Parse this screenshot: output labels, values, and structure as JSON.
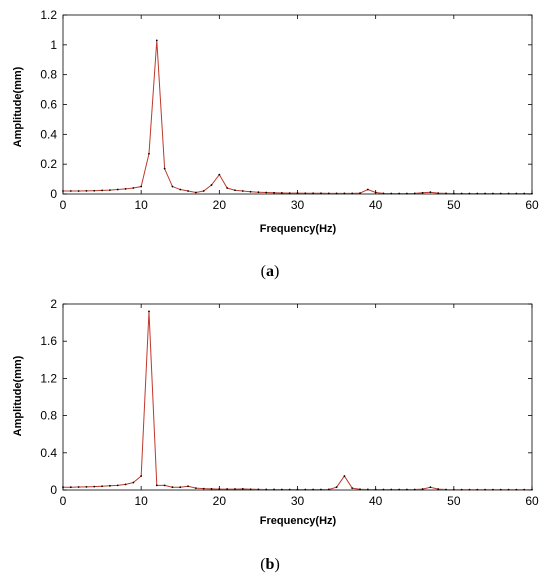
{
  "colors": {
    "line": "#c0392b",
    "marker": "#000000",
    "axis": "#000000"
  },
  "panels": [
    {
      "label_open": "(",
      "label_letter": "a",
      "label_close": ")"
    },
    {
      "label_open": "(",
      "label_letter": "b",
      "label_close": ")"
    }
  ],
  "chart_data": [
    {
      "type": "line",
      "xlabel": "Frequency(Hz)",
      "ylabel": "Amplitude(mm)",
      "xlim": [
        0,
        60
      ],
      "ylim": [
        0,
        1.2
      ],
      "xticks": [
        0,
        10,
        20,
        30,
        40,
        50,
        60
      ],
      "xtick_labels": [
        "0",
        "10",
        "20",
        "30",
        "40",
        "50",
        "60"
      ],
      "yticks": [
        0,
        0.2,
        0.4,
        0.6,
        0.8,
        1.0,
        1.2
      ],
      "ytick_labels": [
        "0",
        "0.2",
        "0.4",
        "0.6",
        "0.8",
        "1",
        "1.2"
      ],
      "series": [
        {
          "x": [
            0,
            1,
            2,
            3,
            4,
            5,
            6,
            7,
            8,
            9,
            10,
            11,
            12,
            13,
            14,
            15,
            16,
            17,
            18,
            19,
            20,
            21,
            22,
            23,
            24,
            25,
            26,
            27,
            28,
            29,
            30,
            31,
            32,
            33,
            34,
            35,
            36,
            37,
            38,
            39,
            40,
            41,
            42,
            43,
            44,
            45,
            46,
            47,
            48,
            49,
            50,
            51,
            52,
            53,
            54,
            55,
            56,
            57,
            58,
            59,
            60
          ],
          "y": [
            0.02,
            0.02,
            0.02,
            0.021,
            0.022,
            0.024,
            0.026,
            0.03,
            0.034,
            0.04,
            0.05,
            0.27,
            1.03,
            0.17,
            0.05,
            0.03,
            0.02,
            0.01,
            0.02,
            0.06,
            0.13,
            0.04,
            0.025,
            0.02,
            0.015,
            0.012,
            0.01,
            0.008,
            0.007,
            0.006,
            0.006,
            0.005,
            0.005,
            0.005,
            0.004,
            0.004,
            0.004,
            0.004,
            0.006,
            0.03,
            0.01,
            0.004,
            0.003,
            0.003,
            0.003,
            0.004,
            0.008,
            0.012,
            0.006,
            0.004,
            0.003,
            0.003,
            0.003,
            0.003,
            0.003,
            0.003,
            0.003,
            0.003,
            0.003,
            0.003,
            0.003
          ]
        }
      ]
    },
    {
      "type": "line",
      "xlabel": "Frequency(Hz)",
      "ylabel": "Amplitude(mm)",
      "xlim": [
        0,
        60
      ],
      "ylim": [
        0,
        2
      ],
      "xticks": [
        0,
        10,
        20,
        30,
        40,
        50,
        60
      ],
      "xtick_labels": [
        "0",
        "10",
        "20",
        "30",
        "40",
        "50",
        "60"
      ],
      "yticks": [
        0,
        0.4,
        0.8,
        1.2,
        1.6,
        2.0
      ],
      "ytick_labels": [
        "0",
        "0.4",
        "0.8",
        "1.2",
        "1.6",
        "2"
      ],
      "series": [
        {
          "x": [
            0,
            1,
            2,
            3,
            4,
            5,
            6,
            7,
            8,
            9,
            10,
            11,
            12,
            13,
            14,
            15,
            16,
            17,
            18,
            19,
            20,
            21,
            22,
            23,
            24,
            25,
            26,
            27,
            28,
            29,
            30,
            31,
            32,
            33,
            34,
            35,
            36,
            37,
            38,
            39,
            40,
            41,
            42,
            43,
            44,
            45,
            46,
            47,
            48,
            49,
            50,
            51,
            52,
            53,
            54,
            55,
            56,
            57,
            58,
            59,
            60
          ],
          "y": [
            0.03,
            0.03,
            0.032,
            0.034,
            0.036,
            0.04,
            0.045,
            0.05,
            0.06,
            0.08,
            0.15,
            1.92,
            0.05,
            0.05,
            0.03,
            0.03,
            0.04,
            0.02,
            0.015,
            0.012,
            0.01,
            0.01,
            0.01,
            0.012,
            0.008,
            0.007,
            0.006,
            0.006,
            0.005,
            0.005,
            0.005,
            0.005,
            0.005,
            0.005,
            0.006,
            0.03,
            0.15,
            0.02,
            0.008,
            0.006,
            0.005,
            0.005,
            0.005,
            0.005,
            0.005,
            0.005,
            0.01,
            0.03,
            0.01,
            0.005,
            0.004,
            0.004,
            0.004,
            0.004,
            0.004,
            0.004,
            0.004,
            0.004,
            0.004,
            0.004,
            0.004
          ]
        }
      ]
    }
  ]
}
